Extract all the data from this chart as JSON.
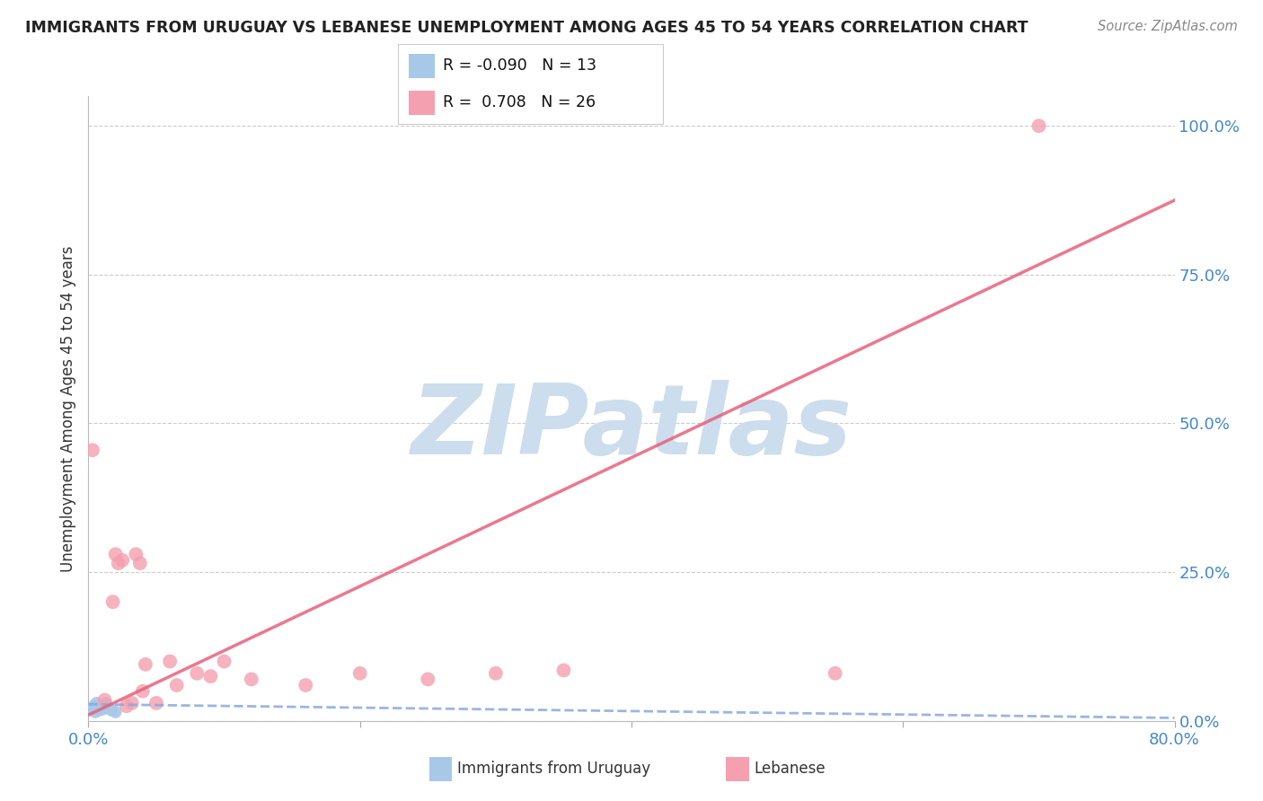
{
  "title": "IMMIGRANTS FROM URUGUAY VS LEBANESE UNEMPLOYMENT AMONG AGES 45 TO 54 YEARS CORRELATION CHART",
  "source": "Source: ZipAtlas.com",
  "ylabel": "Unemployment Among Ages 45 to 54 years",
  "watermark": "ZIPatlas",
  "legend_r1": "R = -0.090",
  "legend_n1": "N = 13",
  "legend_r2": "R =  0.708",
  "legend_n2": "N = 26",
  "xlim": [
    0.0,
    0.8
  ],
  "ylim": [
    0.0,
    1.05
  ],
  "xticks": [
    0.0,
    0.2,
    0.4,
    0.6,
    0.8
  ],
  "xtick_labels": [
    "0.0%",
    "",
    "",
    "",
    "80.0%"
  ],
  "yticks_right": [
    0.0,
    0.25,
    0.5,
    0.75,
    1.0
  ],
  "ytick_right_labels": [
    "0.0%",
    "25.0%",
    "50.0%",
    "75.0%",
    "100.0%"
  ],
  "blue_color": "#a8c8e8",
  "pink_color": "#f4a0b0",
  "blue_line_color": "#88aadd",
  "pink_line_color": "#e8607a",
  "title_color": "#222222",
  "axis_color": "#4488cc",
  "grid_color": "#cccccc",
  "watermark_color": "#ccdded",
  "background_color": "#ffffff",
  "uruguay_x": [
    0.002,
    0.004,
    0.005,
    0.006,
    0.007,
    0.008,
    0.009,
    0.01,
    0.011,
    0.013,
    0.015,
    0.017,
    0.02
  ],
  "uruguay_y": [
    0.02,
    0.025,
    0.015,
    0.03,
    0.022,
    0.018,
    0.028,
    0.025,
    0.02,
    0.03,
    0.022,
    0.018,
    0.015
  ],
  "lebanese_x": [
    0.003,
    0.012,
    0.018,
    0.02,
    0.022,
    0.025,
    0.028,
    0.032,
    0.035,
    0.038,
    0.04,
    0.042,
    0.05,
    0.06,
    0.065,
    0.08,
    0.09,
    0.1,
    0.12,
    0.16,
    0.2,
    0.25,
    0.3,
    0.35,
    0.55,
    0.7
  ],
  "lebanese_y": [
    0.455,
    0.035,
    0.2,
    0.28,
    0.265,
    0.27,
    0.025,
    0.03,
    0.28,
    0.265,
    0.05,
    0.095,
    0.03,
    0.1,
    0.06,
    0.08,
    0.075,
    0.1,
    0.07,
    0.06,
    0.08,
    0.07,
    0.08,
    0.085,
    0.08,
    1.0
  ],
  "blue_trend_x": [
    0.0,
    0.8
  ],
  "blue_trend_y": [
    0.028,
    0.005
  ],
  "pink_trend_x": [
    0.0,
    0.8
  ],
  "pink_trend_y": [
    0.01,
    0.875
  ]
}
